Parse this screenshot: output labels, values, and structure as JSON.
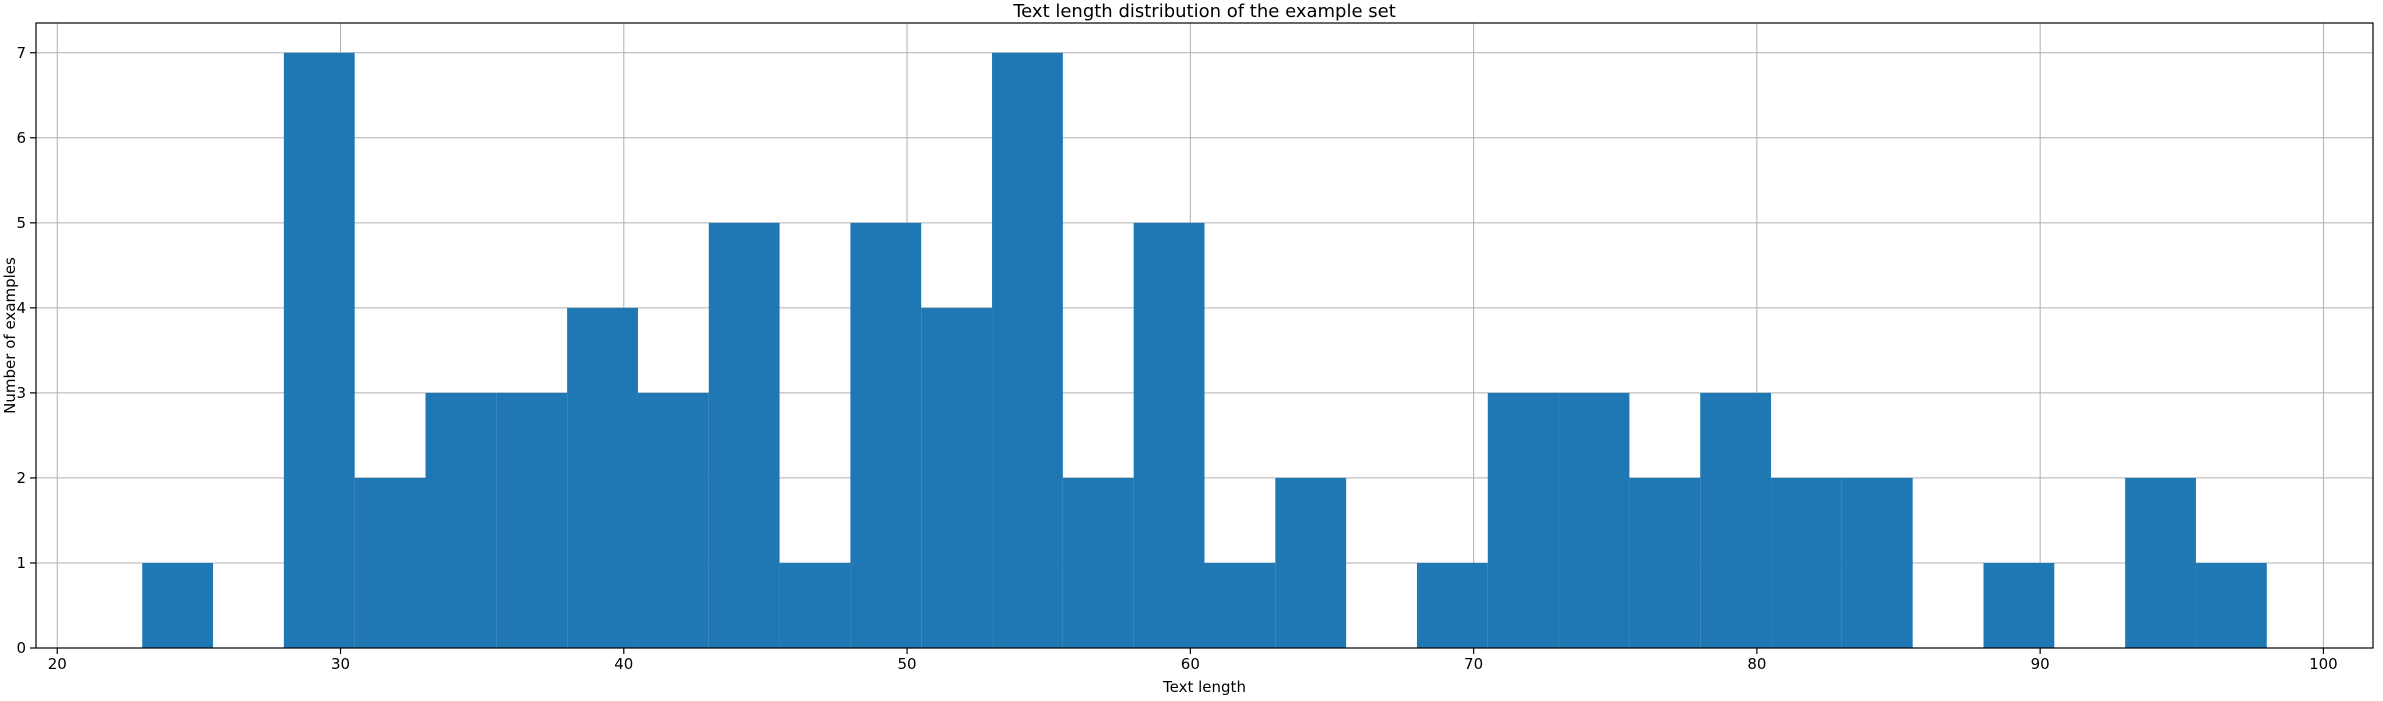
{
  "chart_data": {
    "type": "bar",
    "title": "Text length distribution of the example set",
    "xlabel": "Text length",
    "ylabel": "Number of examples",
    "bin_width": 2.5,
    "bins": [
      {
        "x0": 23.0,
        "count": 1
      },
      {
        "x0": 25.5,
        "count": 0
      },
      {
        "x0": 28.0,
        "count": 7
      },
      {
        "x0": 30.5,
        "count": 2
      },
      {
        "x0": 33.0,
        "count": 3
      },
      {
        "x0": 35.5,
        "count": 3
      },
      {
        "x0": 38.0,
        "count": 4
      },
      {
        "x0": 40.5,
        "count": 3
      },
      {
        "x0": 43.0,
        "count": 5
      },
      {
        "x0": 45.5,
        "count": 1
      },
      {
        "x0": 48.0,
        "count": 5
      },
      {
        "x0": 50.5,
        "count": 4
      },
      {
        "x0": 53.0,
        "count": 7
      },
      {
        "x0": 55.5,
        "count": 2
      },
      {
        "x0": 58.0,
        "count": 5
      },
      {
        "x0": 60.5,
        "count": 1
      },
      {
        "x0": 63.0,
        "count": 2
      },
      {
        "x0": 65.5,
        "count": 0
      },
      {
        "x0": 68.0,
        "count": 1
      },
      {
        "x0": 70.5,
        "count": 3
      },
      {
        "x0": 73.0,
        "count": 3
      },
      {
        "x0": 75.5,
        "count": 2
      },
      {
        "x0": 78.0,
        "count": 3
      },
      {
        "x0": 80.5,
        "count": 2
      },
      {
        "x0": 83.0,
        "count": 2
      },
      {
        "x0": 85.5,
        "count": 0
      },
      {
        "x0": 88.0,
        "count": 1
      },
      {
        "x0": 90.5,
        "count": 0
      },
      {
        "x0": 93.0,
        "count": 2
      },
      {
        "x0": 95.5,
        "count": 1
      }
    ],
    "xlim": [
      19.25,
      101.75
    ],
    "ylim": [
      0,
      7.35
    ],
    "xticks": [
      20,
      30,
      40,
      50,
      60,
      70,
      80,
      90,
      100
    ],
    "yticks": [
      0,
      1,
      2,
      3,
      4,
      5,
      6,
      7
    ],
    "grid": true,
    "bar_color": "#1f77b4"
  }
}
